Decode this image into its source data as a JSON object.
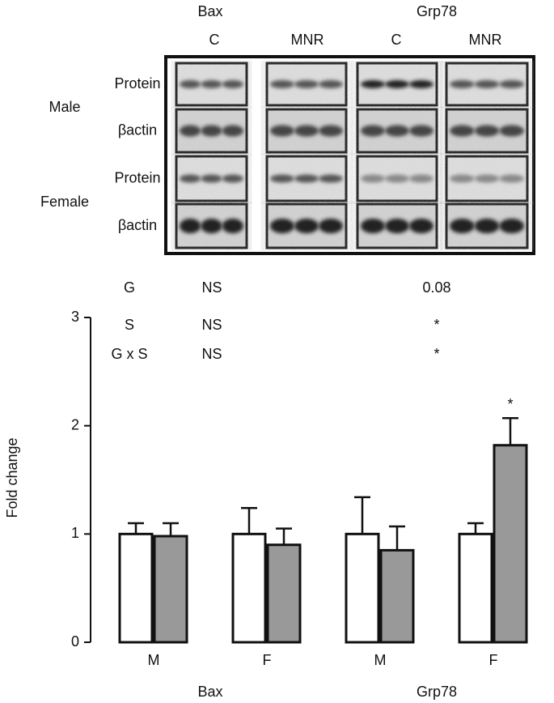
{
  "blot": {
    "genes": [
      {
        "name": "Bax",
        "lanes": [
          "C",
          "MNR"
        ]
      },
      {
        "name": "Grp78",
        "lanes": [
          "C",
          "MNR"
        ]
      }
    ],
    "sexes": [
      {
        "name": "Male",
        "rows": [
          "Protein",
          "βactin"
        ]
      },
      {
        "name": "Female",
        "rows": [
          "Protein",
          "βactin"
        ]
      }
    ]
  },
  "chart_data": {
    "type": "bar",
    "ylabel": "Fold change",
    "ylim": [
      0,
      3
    ],
    "yticks": [
      0,
      1,
      2,
      3
    ],
    "groups": [
      "Bax",
      "Grp78"
    ],
    "categories": [
      "M",
      "F",
      "M",
      "F"
    ],
    "series": [
      {
        "color": "#ffffff",
        "values": [
          1,
          1,
          1,
          1
        ],
        "errors": [
          0.1,
          0.24,
          0.34,
          0.1
        ]
      },
      {
        "color": "#999999",
        "values": [
          0.98,
          0.9,
          0.85,
          1.82
        ],
        "errors": [
          0.12,
          0.15,
          0.22,
          0.25
        ]
      }
    ],
    "stats": [
      {
        "label": "G",
        "values": [
          "NS",
          "0.08"
        ]
      },
      {
        "label": "S",
        "values": [
          "NS",
          "*"
        ]
      },
      {
        "label": "G x S",
        "values": [
          "NS",
          "*"
        ]
      }
    ],
    "annotations": [
      "*"
    ]
  }
}
